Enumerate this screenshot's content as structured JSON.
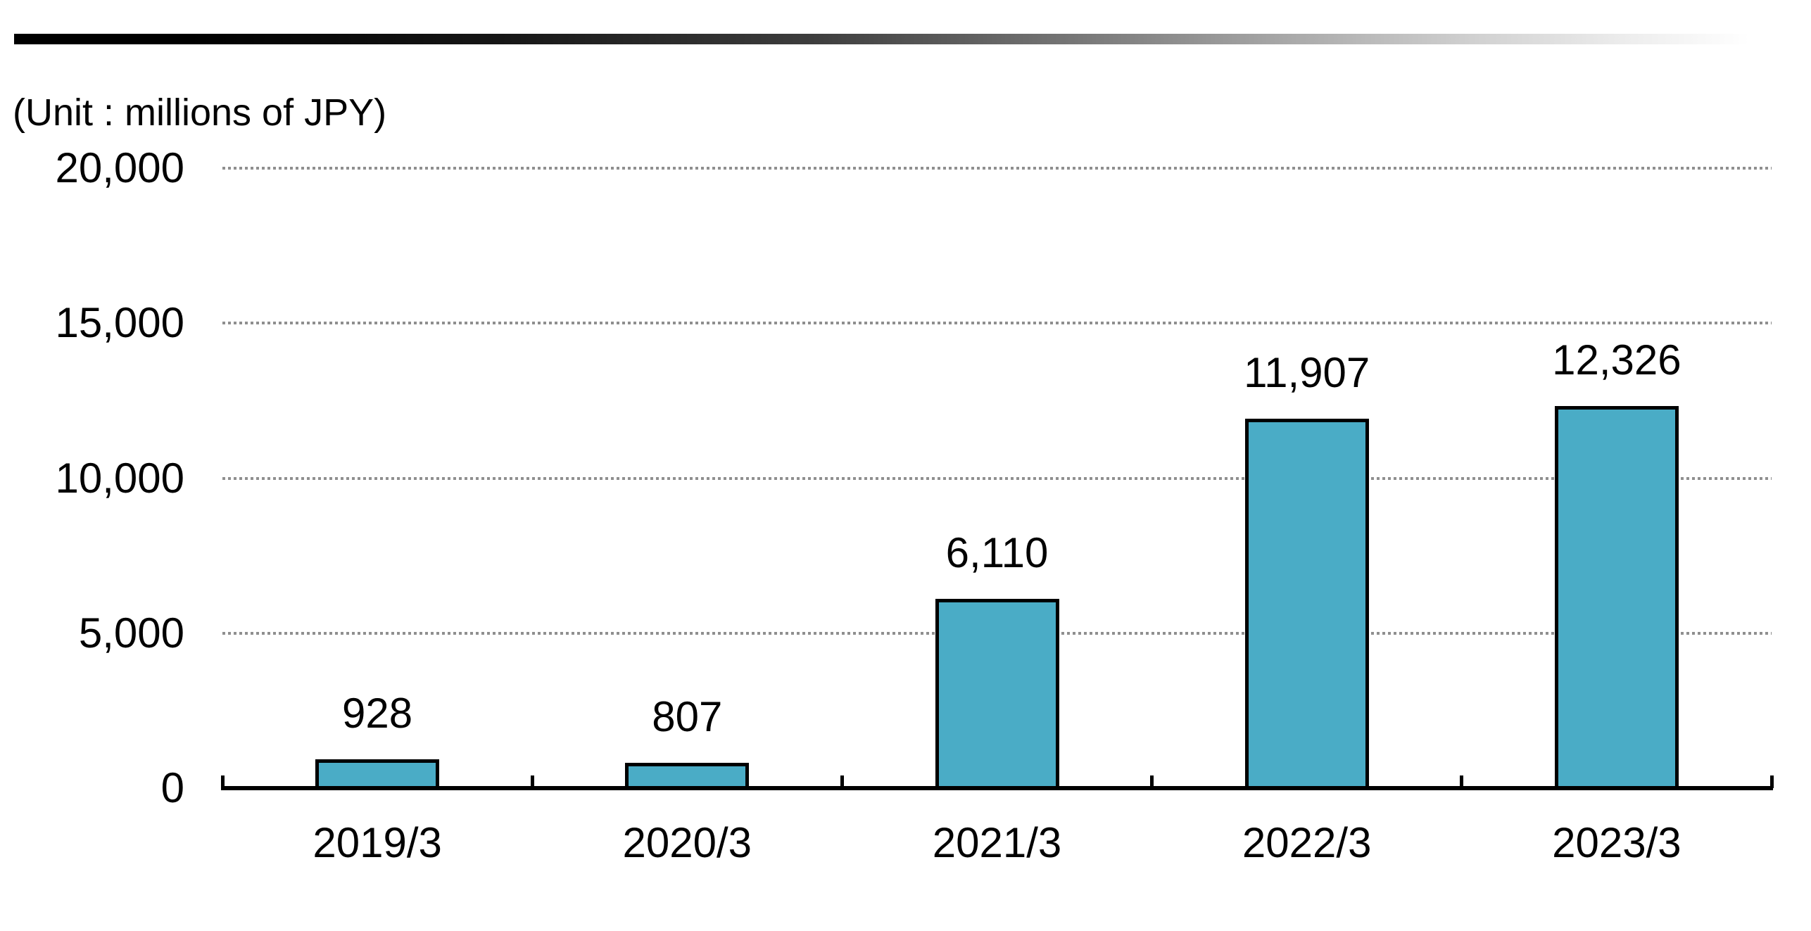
{
  "unit_label": "(Unit : millions of JPY)",
  "chart_data": {
    "type": "bar",
    "title": "",
    "unit": "millions of JPY",
    "categories": [
      "2019/3",
      "2020/3",
      "2021/3",
      "2022/3",
      "2023/3"
    ],
    "values": [
      928,
      807,
      6110,
      11907,
      12326
    ],
    "value_labels": [
      "928",
      "807",
      "6,110",
      "11,907",
      "12,326"
    ],
    "ylim": [
      0,
      20000
    ],
    "yticks": [
      0,
      5000,
      10000,
      15000,
      20000
    ],
    "ytick_labels": [
      "0",
      "5,000",
      "10,000",
      "15,000",
      "20,000"
    ],
    "grid": true,
    "gridline_style": "dotted",
    "legend": "none",
    "colors": {
      "bar_fill": "#4aacc6",
      "bar_border": "#000000",
      "gridline": "#8f8f8f",
      "axis": "#000000",
      "text": "#000000",
      "header_gradient_start": "#000000",
      "header_gradient_end": "#ffffff"
    }
  }
}
